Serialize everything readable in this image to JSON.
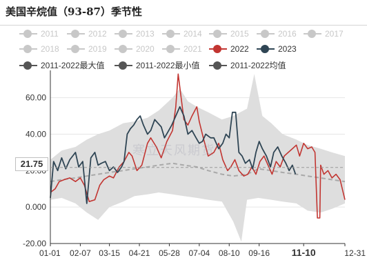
{
  "title": "美国辛烷值（93-87）季节性",
  "pointer_value": "21.75",
  "watermark": "寒立天风期货",
  "colors": {
    "inactive": "#c8c8c8",
    "y2022": "#c23531",
    "y2023": "#2f4554",
    "band": "#dedede",
    "avg": "#a9a9a9",
    "stat": "#666666"
  },
  "legend": [
    {
      "label": "2011",
      "active": false
    },
    {
      "label": "2012",
      "active": false
    },
    {
      "label": "2013",
      "active": false
    },
    {
      "label": "2014",
      "active": false
    },
    {
      "label": "2015",
      "active": false
    },
    {
      "label": "2016",
      "active": false
    },
    {
      "label": "2017",
      "active": false
    },
    {
      "label": "2018",
      "active": false
    },
    {
      "label": "2019",
      "active": false
    },
    {
      "label": "2020",
      "active": false
    },
    {
      "label": "2021",
      "active": false
    },
    {
      "label": "2022",
      "active": true,
      "color": "#c23531"
    },
    {
      "label": "2023",
      "active": true,
      "color": "#2f4554"
    },
    {
      "label": "2011-2022最大值",
      "active": true,
      "color": "#555555"
    },
    {
      "label": "2011-2022最小值",
      "active": true,
      "color": "#555555"
    },
    {
      "label": "2011-2022均值",
      "active": true,
      "color": "#555555"
    }
  ],
  "chart_data": {
    "type": "line",
    "xlabel": "",
    "ylabel": "",
    "ylim": [
      -20,
      75
    ],
    "yticks": [
      "-20.00",
      "0.000",
      "20.00",
      "40.00",
      "60.00"
    ],
    "xticks": [
      "01-01",
      "02-07",
      "03-15",
      "04-21",
      "05-28",
      "07-04",
      "08-10",
      "09-16",
      "11-10",
      "12-31"
    ],
    "xticks_bold": [
      "11-10"
    ],
    "x_domain": [
      "01-01",
      "12-31"
    ],
    "grid": true,
    "band": {
      "name": "2011-2022最大值 / 2011-2022最小值",
      "max": [
        [
          "01-01",
          26
        ],
        [
          "01-15",
          31
        ],
        [
          "02-01",
          33
        ],
        [
          "02-15",
          37
        ],
        [
          "03-01",
          40
        ],
        [
          "03-15",
          42
        ],
        [
          "04-01",
          46
        ],
        [
          "04-15",
          47
        ],
        [
          "05-01",
          49
        ],
        [
          "05-15",
          53
        ],
        [
          "06-01",
          60
        ],
        [
          "06-10",
          65
        ],
        [
          "06-20",
          58
        ],
        [
          "07-01",
          55
        ],
        [
          "07-15",
          52
        ],
        [
          "08-01",
          48
        ],
        [
          "08-15",
          50
        ],
        [
          "09-01",
          54
        ],
        [
          "09-10",
          73
        ],
        [
          "09-20",
          50
        ],
        [
          "10-01",
          46
        ],
        [
          "10-15",
          40
        ],
        [
          "11-01",
          37
        ],
        [
          "11-15",
          34
        ],
        [
          "12-01",
          32
        ],
        [
          "12-15",
          30
        ],
        [
          "12-31",
          28
        ]
      ],
      "min": [
        [
          "01-01",
          4
        ],
        [
          "01-15",
          5
        ],
        [
          "02-01",
          2
        ],
        [
          "02-15",
          -3
        ],
        [
          "03-01",
          -7
        ],
        [
          "03-15",
          0
        ],
        [
          "04-01",
          3
        ],
        [
          "04-15",
          6
        ],
        [
          "05-01",
          7
        ],
        [
          "05-15",
          8
        ],
        [
          "06-01",
          7
        ],
        [
          "06-15",
          6
        ],
        [
          "07-01",
          5
        ],
        [
          "07-15",
          4
        ],
        [
          "08-01",
          3
        ],
        [
          "08-15",
          -8
        ],
        [
          "08-25",
          -19
        ],
        [
          "09-01",
          4
        ],
        [
          "09-15",
          5
        ],
        [
          "10-01",
          4
        ],
        [
          "10-15",
          3
        ],
        [
          "11-01",
          2
        ],
        [
          "11-15",
          -2
        ],
        [
          "12-01",
          -3
        ],
        [
          "12-15",
          -1
        ],
        [
          "12-31",
          2
        ]
      ]
    },
    "series": [
      {
        "name": "2011-2022均值",
        "style": "dashed",
        "points": [
          [
            "01-01",
            14
          ],
          [
            "01-15",
            15
          ],
          [
            "02-01",
            16
          ],
          [
            "02-15",
            17
          ],
          [
            "03-01",
            18
          ],
          [
            "03-15",
            19
          ],
          [
            "04-01",
            20
          ],
          [
            "04-15",
            21
          ],
          [
            "05-01",
            22
          ],
          [
            "05-15",
            23
          ],
          [
            "06-01",
            24
          ],
          [
            "06-15",
            23
          ],
          [
            "07-01",
            22
          ],
          [
            "07-15",
            20
          ],
          [
            "08-01",
            18
          ],
          [
            "08-15",
            17
          ],
          [
            "09-01",
            18
          ],
          [
            "09-15",
            21
          ],
          [
            "10-01",
            20
          ],
          [
            "10-15",
            19
          ],
          [
            "11-01",
            18
          ],
          [
            "11-15",
            17
          ],
          [
            "12-01",
            16
          ],
          [
            "12-15",
            15
          ],
          [
            "12-31",
            14
          ]
        ]
      },
      {
        "name": "2022",
        "points": [
          [
            "01-01",
            8
          ],
          [
            "01-07",
            10
          ],
          [
            "01-12",
            14
          ],
          [
            "01-18",
            15
          ],
          [
            "01-25",
            16
          ],
          [
            "02-01",
            14
          ],
          [
            "02-07",
            16
          ],
          [
            "02-12",
            12
          ],
          [
            "02-18",
            3
          ],
          [
            "02-25",
            4
          ],
          [
            "03-03",
            12
          ],
          [
            "03-08",
            15
          ],
          [
            "03-15",
            17
          ],
          [
            "03-20",
            16
          ],
          [
            "03-27",
            22
          ],
          [
            "04-02",
            25
          ],
          [
            "04-08",
            30
          ],
          [
            "04-12",
            28
          ],
          [
            "04-18",
            20
          ],
          [
            "04-24",
            23
          ],
          [
            "05-01",
            35
          ],
          [
            "05-05",
            38
          ],
          [
            "05-12",
            33
          ],
          [
            "05-18",
            27
          ],
          [
            "05-25",
            36
          ],
          [
            "06-01",
            42
          ],
          [
            "06-05",
            55
          ],
          [
            "06-08",
            73
          ],
          [
            "06-11",
            62
          ],
          [
            "06-15",
            48
          ],
          [
            "06-20",
            45
          ],
          [
            "06-25",
            50
          ],
          [
            "07-01",
            55
          ],
          [
            "07-04",
            47
          ],
          [
            "07-09",
            38
          ],
          [
            "07-15",
            28
          ],
          [
            "07-22",
            30
          ],
          [
            "07-28",
            35
          ],
          [
            "08-02",
            26
          ],
          [
            "08-08",
            20
          ],
          [
            "08-12",
            22
          ],
          [
            "08-17",
            26
          ],
          [
            "08-22",
            20
          ],
          [
            "08-28",
            17
          ],
          [
            "09-02",
            18
          ],
          [
            "09-07",
            22
          ],
          [
            "09-12",
            18
          ],
          [
            "09-17",
            25
          ],
          [
            "09-22",
            28
          ],
          [
            "09-28",
            22
          ],
          [
            "10-02",
            18
          ],
          [
            "10-07",
            25
          ],
          [
            "10-12",
            22
          ],
          [
            "10-17",
            28
          ],
          [
            "10-22",
            30
          ],
          [
            "10-27",
            32
          ],
          [
            "11-01",
            34
          ],
          [
            "11-05",
            28
          ],
          [
            "11-10",
            35
          ],
          [
            "11-15",
            32
          ],
          [
            "11-20",
            33
          ],
          [
            "11-24",
            30
          ],
          [
            "11-27",
            -6
          ],
          [
            "11-30",
            -6
          ],
          [
            "12-01",
            23
          ],
          [
            "12-05",
            18
          ],
          [
            "12-10",
            20
          ],
          [
            "12-15",
            16
          ],
          [
            "12-20",
            18
          ],
          [
            "12-25",
            15
          ],
          [
            "12-31",
            4
          ]
        ]
      },
      {
        "name": "2023",
        "points": [
          [
            "01-01",
            5
          ],
          [
            "01-05",
            25
          ],
          [
            "01-10",
            20
          ],
          [
            "01-15",
            27
          ],
          [
            "01-20",
            21
          ],
          [
            "01-25",
            26
          ],
          [
            "02-01",
            30
          ],
          [
            "02-05",
            22
          ],
          [
            "02-10",
            25
          ],
          [
            "02-15",
            2
          ],
          [
            "02-20",
            27
          ],
          [
            "02-25",
            30
          ],
          [
            "03-01",
            23
          ],
          [
            "03-05",
            24
          ],
          [
            "03-10",
            25
          ],
          [
            "03-15",
            20
          ],
          [
            "03-20",
            22
          ],
          [
            "03-25",
            19
          ],
          [
            "03-30",
            22
          ],
          [
            "04-02",
            25
          ],
          [
            "04-06",
            40
          ],
          [
            "04-10",
            43
          ],
          [
            "04-14",
            45
          ],
          [
            "04-18",
            48
          ],
          [
            "04-22",
            50
          ],
          [
            "04-26",
            45
          ],
          [
            "05-01",
            40
          ],
          [
            "05-05",
            42
          ],
          [
            "05-10",
            48
          ],
          [
            "05-14",
            46
          ],
          [
            "05-18",
            44
          ],
          [
            "05-22",
            38
          ],
          [
            "05-26",
            41
          ],
          [
            "05-31",
            45
          ],
          [
            "06-05",
            50
          ],
          [
            "06-10",
            55
          ],
          [
            "06-15",
            50
          ],
          [
            "06-20",
            40
          ],
          [
            "06-25",
            42
          ],
          [
            "06-30",
            38
          ],
          [
            "07-04",
            35
          ],
          [
            "07-08",
            36
          ],
          [
            "07-12",
            40
          ],
          [
            "07-18",
            38
          ],
          [
            "07-22",
            38
          ],
          [
            "07-28",
            32
          ],
          [
            "08-02",
            35
          ],
          [
            "08-06",
            40
          ],
          [
            "08-10",
            38
          ],
          [
            "08-14",
            52
          ],
          [
            "08-18",
            52
          ],
          [
            "08-22",
            30
          ],
          [
            "08-26",
            28
          ],
          [
            "08-30",
            24
          ],
          [
            "09-04",
            26
          ],
          [
            "09-08",
            21
          ],
          [
            "09-12",
            30
          ],
          [
            "09-16",
            36
          ],
          [
            "09-20",
            32
          ],
          [
            "09-25",
            28
          ],
          [
            "09-30",
            22
          ],
          [
            "10-04",
            30
          ],
          [
            "10-09",
            33
          ],
          [
            "10-14",
            28
          ],
          [
            "10-19",
            24
          ],
          [
            "10-23",
            20
          ],
          [
            "10-27",
            23
          ],
          [
            "10-31",
            18
          ]
        ]
      }
    ]
  }
}
